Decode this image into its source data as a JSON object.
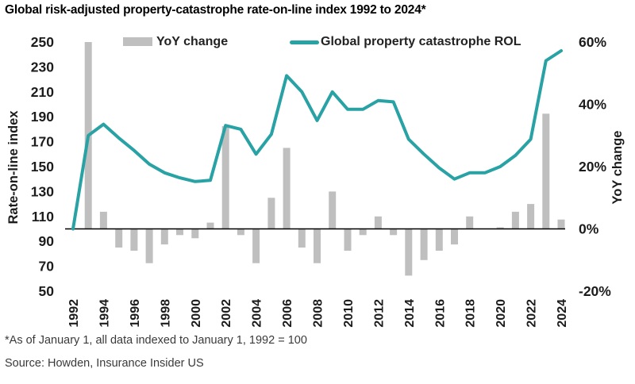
{
  "title": "Global risk-adjusted property-catastrophe rate-on-line index 1992 to 2024*",
  "legend": {
    "bar_label": "YoY change",
    "line_label": "Global property catastrophe ROL"
  },
  "footnote": "*As of January 1, all data indexed to January 1, 1992 = 100",
  "source": "Source: Howden, Insurance Insider US",
  "colors": {
    "line": "#28A2A4",
    "bar": "#BFBFBF",
    "axis_line": "#000000",
    "tick_text": "#1C1C1C",
    "footnote_text": "#3A3A3A"
  },
  "chart_data": {
    "type": "bar",
    "subtype": "combo-bar-line-dual-axis",
    "title": "Global risk-adjusted property-catastrophe rate-on-line index 1992 to 2024*",
    "grid": false,
    "legend_position": "top",
    "x": [
      1992,
      1993,
      1994,
      1995,
      1996,
      1997,
      1998,
      1999,
      2000,
      2001,
      2002,
      2003,
      2004,
      2005,
      2006,
      2007,
      2008,
      2009,
      2010,
      2011,
      2012,
      2013,
      2014,
      2015,
      2016,
      2017,
      2018,
      2019,
      2020,
      2021,
      2022,
      2023,
      2024
    ],
    "series": [
      {
        "name": "YoY change",
        "type": "bar",
        "axis": "right",
        "unit": "%",
        "values": [
          null,
          60,
          5.5,
          -6,
          -7,
          -11,
          -5,
          -2,
          -3,
          2,
          33,
          -2,
          -11,
          10,
          26,
          -6,
          -11,
          12,
          -7,
          -2,
          4,
          -2,
          -15,
          -10,
          -7,
          -5,
          4,
          null,
          0.5,
          5.5,
          8,
          37,
          3
        ]
      },
      {
        "name": "Global property catastrophe ROL",
        "type": "line",
        "axis": "left",
        "unit": "index",
        "values": [
          100,
          175,
          184,
          173,
          163,
          152,
          145,
          141,
          138,
          139,
          183,
          180,
          160,
          176,
          223,
          210,
          187,
          210,
          196,
          196,
          203,
          202,
          172,
          160,
          149,
          140,
          145,
          145,
          150,
          159,
          172,
          235,
          243
        ]
      }
    ],
    "left_axis": {
      "label": "Rate-on-line index",
      "min": 50,
      "max": 250,
      "ticks": [
        250,
        230,
        210,
        190,
        170,
        150,
        130,
        110,
        90,
        70,
        50
      ]
    },
    "right_axis": {
      "label": "YoY change",
      "min": -20,
      "max": 60,
      "ticks": [
        "60%",
        "40%",
        "20%",
        "0%",
        "-20%"
      ]
    },
    "x_tick_years": [
      1992,
      1994,
      1996,
      1998,
      2000,
      2002,
      2004,
      2006,
      2008,
      2010,
      2012,
      2014,
      2016,
      2018,
      2020,
      2022,
      2024
    ]
  }
}
